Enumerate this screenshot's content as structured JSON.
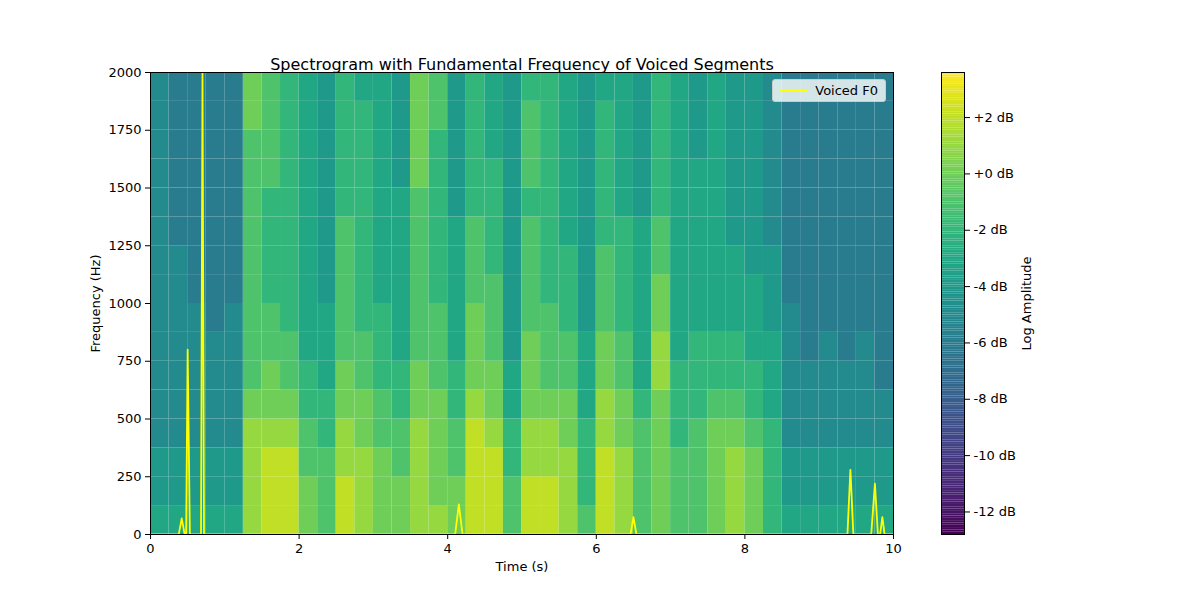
{
  "chart_data": {
    "type": "heatmap",
    "title": "Spectrogram with Fundamental Frequency of Voiced Segments",
    "x_label": "Time (s)",
    "y_label": "Frequency (Hz)",
    "xlim": [
      0,
      10
    ],
    "ylim": [
      0,
      2000
    ],
    "xticks": [
      0,
      2,
      4,
      6,
      8,
      10
    ],
    "yticks": [
      0,
      250,
      500,
      750,
      1000,
      1250,
      1500,
      1750,
      2000
    ],
    "legend": "upper right",
    "heatmap": {
      "color": "viridis",
      "x_edges": [
        0,
        0.25,
        0.5,
        0.75,
        1,
        1.25,
        1.5,
        1.75,
        2,
        2.25,
        2.5,
        2.75,
        3,
        3.25,
        3.5,
        3.75,
        4,
        4.25,
        4.5,
        4.75,
        5,
        5.25,
        5.5,
        5.75,
        6,
        6.25,
        6.5,
        6.75,
        7,
        7.25,
        7.5,
        7.75,
        8,
        8.25,
        8.5,
        8.75,
        9,
        9.25,
        9.5,
        9.75,
        10
      ],
      "y_edges": [
        0,
        125,
        250,
        375,
        500,
        625,
        750,
        875,
        1000,
        1125,
        1250,
        1375,
        1500,
        1625,
        1750,
        1875,
        2000
      ],
      "values": [
        [
          -3,
          -3,
          -3,
          -3,
          -3,
          1,
          2,
          2,
          0,
          -1,
          2,
          1,
          0,
          0,
          1,
          1,
          0,
          2,
          2,
          -1,
          2,
          2,
          1,
          -1,
          2,
          1,
          -1,
          0,
          -1,
          -1,
          0,
          1,
          0,
          -2,
          -3,
          -3,
          -3,
          -3,
          -3,
          -3
        ],
        [
          -4,
          -4,
          -4,
          -4,
          -4,
          1,
          2,
          2,
          0,
          -1,
          2,
          1,
          0,
          0,
          1,
          0,
          0,
          2,
          2,
          -1,
          2,
          2,
          1,
          -2,
          2,
          1,
          -1,
          0,
          -1,
          -1,
          0,
          1,
          0,
          -2,
          -4,
          -4,
          -4,
          -4,
          -4,
          -4
        ],
        [
          -4,
          -4,
          -4,
          -4,
          -4,
          1,
          2,
          2,
          -1,
          -1,
          1,
          1,
          0,
          -1,
          1,
          0,
          -1,
          2,
          2,
          -2,
          1,
          1,
          1,
          -2,
          2,
          1,
          -1,
          0,
          -1,
          -1,
          0,
          1,
          0,
          -2,
          -4,
          -4,
          -4,
          -4,
          -4,
          -4
        ],
        [
          -5,
          -5,
          -5,
          -5,
          -5,
          1,
          1,
          1,
          -1,
          -2,
          1,
          0,
          -1,
          -1,
          1,
          0,
          -1,
          2,
          1,
          -2,
          1,
          1,
          0,
          -2,
          1,
          0,
          -1,
          0,
          -2,
          -1,
          0,
          0,
          -1,
          -2,
          -5,
          -5,
          -5,
          -5,
          -5,
          -5
        ],
        [
          -5,
          -5,
          -5,
          -5,
          -5,
          0,
          0,
          0,
          -2,
          -2,
          0,
          0,
          -1,
          -2,
          0,
          0,
          -2,
          1,
          0,
          -3,
          0,
          0,
          0,
          -3,
          1,
          0,
          -2,
          0,
          -2,
          -2,
          -1,
          -1,
          -2,
          -3,
          -5,
          -5,
          -5,
          -5,
          -5,
          -5
        ],
        [
          -5,
          -5,
          -5,
          -5,
          -5,
          -1,
          0,
          -1,
          -2,
          -3,
          0,
          -1,
          -2,
          -2,
          0,
          -1,
          -2,
          0,
          0,
          -3,
          0,
          -1,
          -1,
          -3,
          0,
          -1,
          -3,
          1,
          -2,
          -2,
          -2,
          -2,
          -2,
          -3,
          -5,
          -5,
          -5,
          -5,
          -5,
          -6
        ],
        [
          -5,
          -5,
          -5,
          -5,
          -5,
          -1,
          -1,
          -1,
          -3,
          -3,
          -1,
          -1,
          -2,
          -3,
          -1,
          -1,
          -3,
          0,
          -1,
          -4,
          0,
          -1,
          -1,
          -3,
          0,
          -1,
          -3,
          1,
          -3,
          -2,
          -2,
          -2,
          -3,
          -3,
          -5,
          -6,
          -5,
          -6,
          -5,
          -6
        ],
        [
          -5,
          -5,
          -5,
          -6,
          -5,
          -1,
          -1,
          -2,
          -3,
          -3,
          -1,
          -2,
          -2,
          -3,
          -1,
          -1,
          -3,
          0,
          -1,
          -4,
          -1,
          -1,
          -2,
          -4,
          -1,
          -2,
          -3,
          0,
          -3,
          -3,
          -3,
          -3,
          -3,
          -4,
          -5,
          -6,
          -6,
          -6,
          -6,
          -6
        ],
        [
          -5,
          -5,
          -6,
          -6,
          -6,
          -1,
          -2,
          -2,
          -3,
          -4,
          -1,
          -2,
          -3,
          -3,
          -1,
          -2,
          -3,
          -1,
          -1,
          -4,
          -1,
          -2,
          -2,
          -4,
          -1,
          -2,
          -3,
          0,
          -3,
          -3,
          -3,
          -3,
          -3,
          -4,
          -6,
          -6,
          -6,
          -6,
          -6,
          -6
        ],
        [
          -5,
          -5,
          -6,
          -6,
          -6,
          -1,
          -2,
          -2,
          -3,
          -4,
          -1,
          -2,
          -3,
          -3,
          -1,
          -2,
          -3,
          -1,
          -2,
          -4,
          -1,
          -2,
          -2,
          -4,
          -1,
          -2,
          -3,
          -1,
          -3,
          -3,
          -3,
          -3,
          -4,
          -4,
          -6,
          -6,
          -6,
          -6,
          -6,
          -6
        ],
        [
          -5,
          -6,
          -6,
          -6,
          -6,
          -1,
          -2,
          -2,
          -3,
          -4,
          -1,
          -2,
          -3,
          -3,
          -1,
          -2,
          -3,
          -1,
          -2,
          -4,
          -1,
          -2,
          -3,
          -4,
          -2,
          -2,
          -3,
          -1,
          -3,
          -3,
          -3,
          -4,
          -4,
          -5,
          -6,
          -6,
          -6,
          -6,
          -6,
          -6
        ],
        [
          -5,
          -6,
          -6,
          -6,
          -6,
          -1,
          -2,
          -2,
          -3,
          -4,
          -2,
          -2,
          -3,
          -3,
          -1,
          -2,
          -4,
          -2,
          -2,
          -4,
          -2,
          -2,
          -3,
          -4,
          -2,
          -3,
          -4,
          -2,
          -3,
          -3,
          -3,
          -4,
          -4,
          -5,
          -6,
          -6,
          -6,
          -6,
          -6,
          -6
        ],
        [
          -5,
          -6,
          -6,
          -6,
          -6,
          -1,
          -1,
          -2,
          -3,
          -4,
          -2,
          -2,
          -3,
          -4,
          0,
          -2,
          -4,
          -2,
          -2,
          -4,
          -1,
          -2,
          -3,
          -4,
          -2,
          -3,
          -4,
          -2,
          -3,
          -3,
          -3,
          -4,
          -4,
          -5,
          -6,
          -6,
          -6,
          -6,
          -6,
          -6
        ],
        [
          -5,
          -6,
          -6,
          -6,
          -6,
          -1,
          -1,
          -2,
          -3,
          -4,
          -2,
          -2,
          -3,
          -4,
          0,
          -2,
          -4,
          -2,
          -3,
          -4,
          -1,
          -2,
          -3,
          -4,
          -2,
          -3,
          -4,
          -2,
          -3,
          -4,
          -3,
          -4,
          -4,
          -5,
          -6,
          -6,
          -6,
          -6,
          -6,
          -6
        ],
        [
          -5,
          -6,
          -6,
          -6,
          -6,
          0,
          -1,
          -2,
          -3,
          -4,
          -2,
          -2,
          -3,
          -4,
          0,
          -1,
          -4,
          -2,
          -3,
          -4,
          -1,
          -2,
          -3,
          -4,
          -2,
          -3,
          -4,
          -2,
          -3,
          -4,
          -3,
          -4,
          -4,
          -5,
          -6,
          -6,
          -6,
          -6,
          -6,
          -6
        ],
        [
          -5,
          -6,
          -6,
          -6,
          -6,
          0,
          -1,
          -2,
          -3,
          -4,
          -2,
          -3,
          -3,
          -4,
          0,
          -1,
          -4,
          -2,
          -3,
          -4,
          -2,
          -2,
          -3,
          -4,
          -3,
          -3,
          -4,
          -2,
          -3,
          -4,
          -3,
          -4,
          -4,
          -5,
          -6,
          -6,
          -6,
          -6,
          -6,
          -6
        ]
      ]
    },
    "colorbar": {
      "label": "Log Amplitude",
      "range": [
        -12.8,
        3.6
      ],
      "ticks": [
        {
          "value": -12,
          "label": "-12 dB"
        },
        {
          "value": -10,
          "label": "-10 dB"
        },
        {
          "value": -8,
          "label": "-8 dB"
        },
        {
          "value": -6,
          "label": "-6 dB"
        },
        {
          "value": -4,
          "label": "-4 dB"
        },
        {
          "value": -2,
          "label": "-2 dB"
        },
        {
          "value": 0,
          "label": "+0 dB"
        },
        {
          "value": 2,
          "label": "+2 dB"
        }
      ]
    },
    "series": [
      {
        "name": "Voiced F0",
        "type": "line",
        "color": "#ffff00",
        "x": [
          0,
          0.38,
          0.42,
          0.46,
          0.48,
          0.5,
          0.53,
          0.68,
          0.7,
          0.72,
          4.1,
          4.15,
          4.2,
          6.46,
          6.5,
          6.54,
          9.38,
          9.42,
          9.46,
          9.7,
          9.75,
          9.79,
          9.82,
          9.85,
          9.88,
          10
        ],
        "values": [
          0,
          0,
          70,
          0,
          0,
          800,
          0,
          0,
          2000,
          0,
          0,
          130,
          0,
          0,
          75,
          0,
          0,
          280,
          0,
          0,
          220,
          0,
          0,
          75,
          0,
          0
        ]
      }
    ]
  }
}
